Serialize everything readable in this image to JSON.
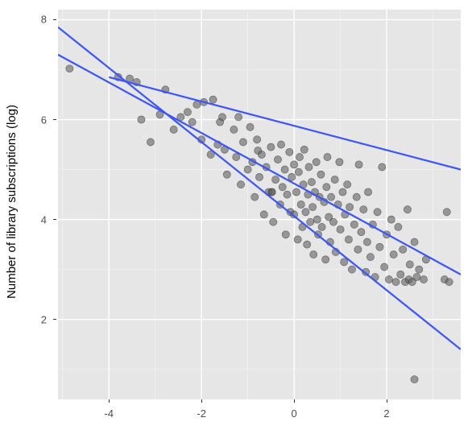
{
  "chart": {
    "type": "scatter_with_lines",
    "ylabel": "Number of library subscriptions (log)",
    "ylabel_fontsize": 15,
    "tick_fontsize": 13,
    "tick_color": "#4d4d4d",
    "panel_bg": "#e6e6e6",
    "grid_major_color": "#ffffff",
    "grid_major_width": 1.4,
    "grid_minor_color": "#f3f3f3",
    "grid_minor_width": 0.7,
    "background_color": "#ffffff",
    "point_fill": "#5b5b5b",
    "point_stroke": "#2c2c2c",
    "point_opacity": 0.58,
    "point_radius": 4.6,
    "line_color": "#3a54ff",
    "line_width": 2.2,
    "xlim": [
      -5.1,
      3.6
    ],
    "ylim": [
      0.4,
      8.2
    ],
    "x_ticks": [
      -4,
      -2,
      0,
      2
    ],
    "x_tick_labels": [
      "-4",
      "-2",
      "0",
      "2"
    ],
    "x_minor_ticks": [
      -5,
      -3,
      -1,
      1,
      3
    ],
    "y_ticks": [
      2,
      4,
      6,
      8
    ],
    "y_minor_ticks": [
      1,
      3,
      5,
      7
    ],
    "lines": [
      {
        "x1": -5.1,
        "y1": 7.85,
        "x2": 3.6,
        "y2": 1.4
      },
      {
        "x1": -5.1,
        "y1": 7.3,
        "x2": 3.6,
        "y2": 2.9
      },
      {
        "x1": -4.0,
        "y1": 6.85,
        "x2": 3.6,
        "y2": 5.0
      }
    ],
    "points": [
      {
        "x": -4.85,
        "y": 7.02
      },
      {
        "x": -3.8,
        "y": 6.85
      },
      {
        "x": -3.55,
        "y": 6.82
      },
      {
        "x": -3.3,
        "y": 6.0
      },
      {
        "x": -3.1,
        "y": 5.55
      },
      {
        "x": -3.4,
        "y": 6.75
      },
      {
        "x": -2.9,
        "y": 6.1
      },
      {
        "x": -2.78,
        "y": 6.6
      },
      {
        "x": -2.6,
        "y": 5.8
      },
      {
        "x": -2.45,
        "y": 6.05
      },
      {
        "x": -2.3,
        "y": 6.15
      },
      {
        "x": -2.2,
        "y": 5.95
      },
      {
        "x": -2.1,
        "y": 6.3
      },
      {
        "x": -2.0,
        "y": 5.6
      },
      {
        "x": -1.95,
        "y": 6.35
      },
      {
        "x": -1.8,
        "y": 5.3
      },
      {
        "x": -1.75,
        "y": 6.4
      },
      {
        "x": -1.65,
        "y": 5.5
      },
      {
        "x": -1.6,
        "y": 5.95
      },
      {
        "x": -1.55,
        "y": 6.05
      },
      {
        "x": -1.5,
        "y": 5.4
      },
      {
        "x": -1.45,
        "y": 4.9
      },
      {
        "x": -1.3,
        "y": 5.8
      },
      {
        "x": -1.25,
        "y": 5.25
      },
      {
        "x": -1.2,
        "y": 6.05
      },
      {
        "x": -1.15,
        "y": 4.7
      },
      {
        "x": -1.1,
        "y": 5.55
      },
      {
        "x": -1.0,
        "y": 5.0
      },
      {
        "x": -0.95,
        "y": 5.85
      },
      {
        "x": -0.9,
        "y": 5.15
      },
      {
        "x": -0.85,
        "y": 4.45
      },
      {
        "x": -0.8,
        "y": 5.6
      },
      {
        "x": -0.78,
        "y": 5.38
      },
      {
        "x": -0.75,
        "y": 4.85
      },
      {
        "x": -0.7,
        "y": 5.3
      },
      {
        "x": -0.65,
        "y": 4.1
      },
      {
        "x": -0.6,
        "y": 5.05
      },
      {
        "x": -0.55,
        "y": 4.55
      },
      {
        "x": -0.5,
        "y": 5.45
      },
      {
        "x": -0.48,
        "y": 4.55
      },
      {
        "x": -0.48,
        "y": 4.55
      },
      {
        "x": -0.45,
        "y": 3.95
      },
      {
        "x": -0.4,
        "y": 4.8
      },
      {
        "x": -0.35,
        "y": 5.2
      },
      {
        "x": -0.3,
        "y": 4.3
      },
      {
        "x": -0.28,
        "y": 5.5
      },
      {
        "x": -0.25,
        "y": 4.65
      },
      {
        "x": -0.2,
        "y": 5.0
      },
      {
        "x": -0.18,
        "y": 3.7
      },
      {
        "x": -0.15,
        "y": 4.5
      },
      {
        "x": -0.1,
        "y": 5.35
      },
      {
        "x": -0.08,
        "y": 4.15
      },
      {
        "x": -0.05,
        "y": 4.85
      },
      {
        "x": 0.0,
        "y": 5.1
      },
      {
        "x": 0.0,
        "y": 4.1
      },
      {
        "x": 0.05,
        "y": 4.55
      },
      {
        "x": 0.08,
        "y": 3.6
      },
      {
        "x": 0.1,
        "y": 4.95
      },
      {
        "x": 0.12,
        "y": 5.25
      },
      {
        "x": 0.15,
        "y": 4.3
      },
      {
        "x": 0.18,
        "y": 3.85
      },
      {
        "x": 0.2,
        "y": 4.7
      },
      {
        "x": 0.22,
        "y": 5.4
      },
      {
        "x": 0.25,
        "y": 4.15
      },
      {
        "x": 0.28,
        "y": 3.5
      },
      {
        "x": 0.3,
        "y": 4.5
      },
      {
        "x": 0.32,
        "y": 5.05
      },
      {
        "x": 0.35,
        "y": 3.95
      },
      {
        "x": 0.38,
        "y": 4.75
      },
      {
        "x": 0.4,
        "y": 4.25
      },
      {
        "x": 0.42,
        "y": 3.3
      },
      {
        "x": 0.45,
        "y": 4.55
      },
      {
        "x": 0.48,
        "y": 5.15
      },
      {
        "x": 0.5,
        "y": 4.0
      },
      {
        "x": 0.52,
        "y": 3.7
      },
      {
        "x": 0.55,
        "y": 4.45
      },
      {
        "x": 0.58,
        "y": 4.9
      },
      {
        "x": 0.6,
        "y": 3.85
      },
      {
        "x": 0.65,
        "y": 4.35
      },
      {
        "x": 0.68,
        "y": 3.2
      },
      {
        "x": 0.7,
        "y": 4.65
      },
      {
        "x": 0.72,
        "y": 5.25
      },
      {
        "x": 0.75,
        "y": 4.05
      },
      {
        "x": 0.78,
        "y": 3.55
      },
      {
        "x": 0.8,
        "y": 4.45
      },
      {
        "x": 0.85,
        "y": 3.95
      },
      {
        "x": 0.88,
        "y": 4.8
      },
      {
        "x": 0.9,
        "y": 3.35
      },
      {
        "x": 0.95,
        "y": 4.3
      },
      {
        "x": 0.98,
        "y": 5.15
      },
      {
        "x": 1.0,
        "y": 3.8
      },
      {
        "x": 1.05,
        "y": 4.55
      },
      {
        "x": 1.08,
        "y": 3.15
      },
      {
        "x": 1.1,
        "y": 4.1
      },
      {
        "x": 1.15,
        "y": 4.7
      },
      {
        "x": 1.18,
        "y": 3.6
      },
      {
        "x": 1.2,
        "y": 4.25
      },
      {
        "x": 1.25,
        "y": 3.0
      },
      {
        "x": 1.3,
        "y": 3.9
      },
      {
        "x": 1.35,
        "y": 4.45
      },
      {
        "x": 1.38,
        "y": 3.4
      },
      {
        "x": 1.4,
        "y": 5.1
      },
      {
        "x": 1.45,
        "y": 3.75
      },
      {
        "x": 1.5,
        "y": 4.2
      },
      {
        "x": 1.55,
        "y": 2.95
      },
      {
        "x": 1.58,
        "y": 3.55
      },
      {
        "x": 1.6,
        "y": 4.55
      },
      {
        "x": 1.65,
        "y": 3.25
      },
      {
        "x": 1.7,
        "y": 3.9
      },
      {
        "x": 1.75,
        "y": 2.85
      },
      {
        "x": 1.8,
        "y": 4.15
      },
      {
        "x": 1.85,
        "y": 3.45
      },
      {
        "x": 1.9,
        "y": 5.05
      },
      {
        "x": 1.95,
        "y": 3.05
      },
      {
        "x": 2.0,
        "y": 3.7
      },
      {
        "x": 2.05,
        "y": 2.8
      },
      {
        "x": 2.1,
        "y": 4.0
      },
      {
        "x": 2.15,
        "y": 3.3
      },
      {
        "x": 2.2,
        "y": 2.75
      },
      {
        "x": 2.25,
        "y": 3.85
      },
      {
        "x": 2.3,
        "y": 2.9
      },
      {
        "x": 2.35,
        "y": 3.4
      },
      {
        "x": 2.4,
        "y": 2.75
      },
      {
        "x": 2.45,
        "y": 4.2
      },
      {
        "x": 2.48,
        "y": 2.8
      },
      {
        "x": 2.5,
        "y": 3.1
      },
      {
        "x": 2.55,
        "y": 2.75
      },
      {
        "x": 2.6,
        "y": 3.55
      },
      {
        "x": 2.65,
        "y": 2.85
      },
      {
        "x": 2.7,
        "y": 3.0
      },
      {
        "x": 2.8,
        "y": 2.8
      },
      {
        "x": 2.85,
        "y": 3.2
      },
      {
        "x": 2.6,
        "y": 0.8
      },
      {
        "x": 3.3,
        "y": 4.15
      },
      {
        "x": 3.25,
        "y": 2.8
      },
      {
        "x": 3.35,
        "y": 2.75
      }
    ]
  }
}
